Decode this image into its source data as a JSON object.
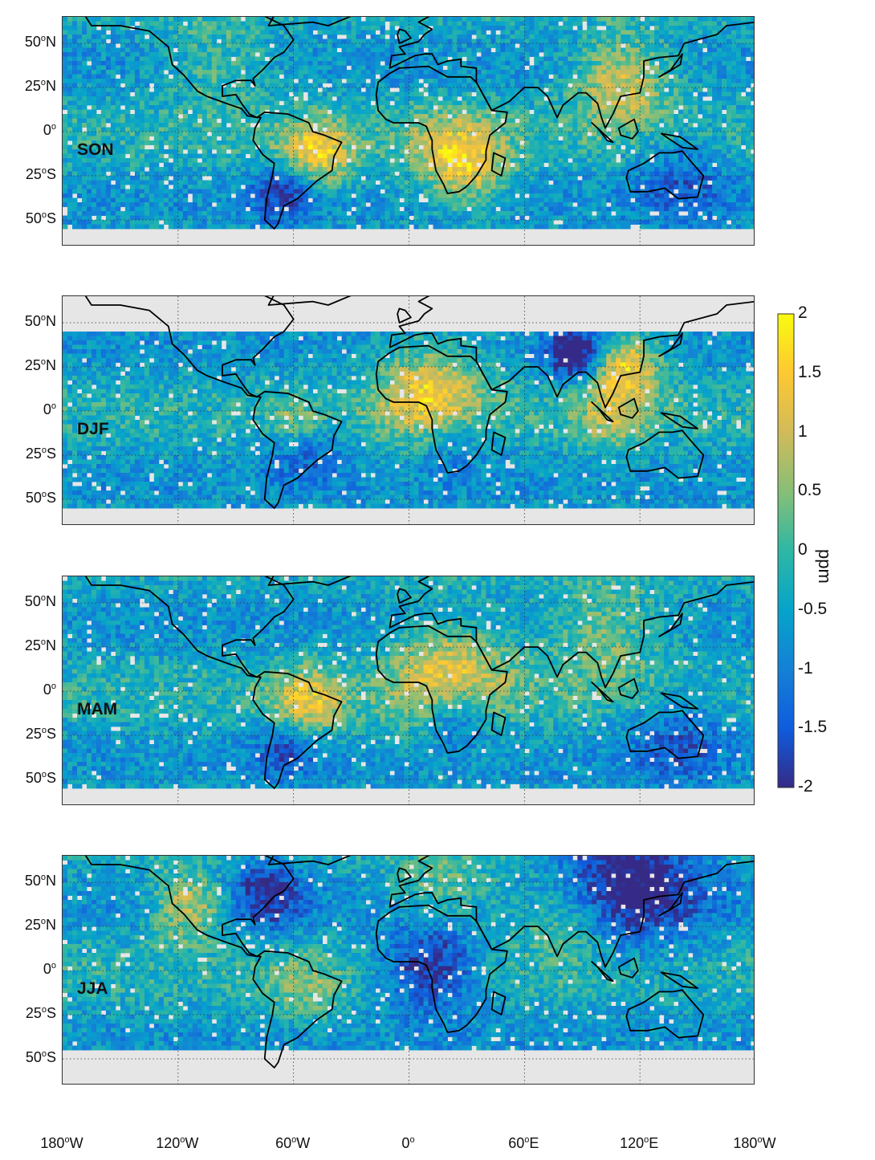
{
  "panels": [
    {
      "season": "SON",
      "north_limit": 65,
      "south_limit": -55
    },
    {
      "season": "DJF",
      "north_limit": 45,
      "south_limit": -55
    },
    {
      "season": "MAM",
      "north_limit": 65,
      "south_limit": -55
    },
    {
      "season": "JJA",
      "north_limit": 65,
      "south_limit": -43
    }
  ],
  "y_ticks": [
    {
      "deg": "50",
      "hemi": "N"
    },
    {
      "deg": "25",
      "hemi": "N"
    },
    {
      "deg": "0",
      "hemi": ""
    },
    {
      "deg": "25",
      "hemi": "S"
    },
    {
      "deg": "50",
      "hemi": "S"
    }
  ],
  "x_ticks": [
    {
      "deg": "180",
      "hemi": "W"
    },
    {
      "deg": "120",
      "hemi": "W"
    },
    {
      "deg": "60",
      "hemi": "W"
    },
    {
      "deg": "0",
      "hemi": ""
    },
    {
      "deg": "60",
      "hemi": "E"
    },
    {
      "deg": "120",
      "hemi": "E"
    },
    {
      "deg": "180",
      "hemi": "W"
    }
  ],
  "colorbar": {
    "unit": "ppm",
    "min": -2,
    "max": 2,
    "ticks": [
      "2",
      "1.5",
      "1",
      "0.5",
      "0",
      "-0.5",
      "-1",
      "-1.5",
      "-2"
    ],
    "colormap": "parula",
    "colors": [
      "#352a87",
      "#0f5cdd",
      "#1481d6",
      "#06a4ca",
      "#2eb7a4",
      "#87bf77",
      "#d1bb59",
      "#fec832",
      "#f9fb0e"
    ]
  },
  "missing_data_color": "#e6e6e6",
  "coastline_color": "#000000"
}
